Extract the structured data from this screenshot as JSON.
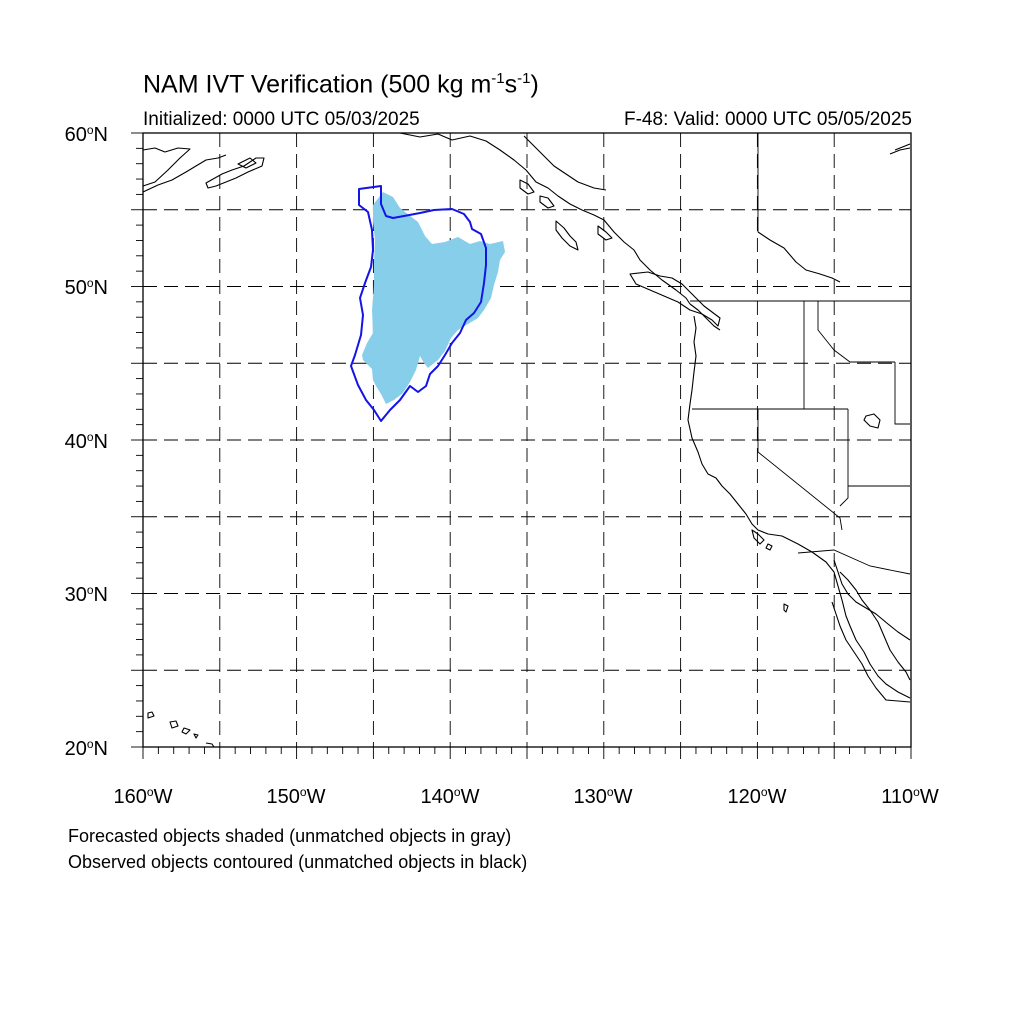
{
  "title": {
    "main": "NAM IVT Verification (500 kg m",
    "exp1": "-1",
    "mid": "s",
    "exp2": "-1",
    "close": ")"
  },
  "subtitle_left": "Initialized: 0000 UTC 05/03/2025",
  "subtitle_right": "F-48: Valid: 0000 UTC 05/05/2025",
  "map": {
    "lon_range": [
      -160,
      -110
    ],
    "lat_range": [
      20,
      60
    ],
    "grid_spacing_deg": 5,
    "grid_style": "dashed",
    "lat_labels": [
      {
        "num": "60",
        "hemi": "N"
      },
      {
        "num": "50",
        "hemi": "N"
      },
      {
        "num": "40",
        "hemi": "N"
      },
      {
        "num": "30",
        "hemi": "N"
      },
      {
        "num": "20",
        "hemi": "N"
      }
    ],
    "lon_labels": [
      {
        "num": "160",
        "hemi": "W"
      },
      {
        "num": "150",
        "hemi": "W"
      },
      {
        "num": "140",
        "hemi": "W"
      },
      {
        "num": "130",
        "hemi": "W"
      },
      {
        "num": "120",
        "hemi": "W"
      },
      {
        "num": "110",
        "hemi": "W"
      }
    ],
    "forecast_object_color": "#87ceeb",
    "observed_object_color": "#1414e6",
    "coastline_color": "#000000"
  },
  "footnotes": [
    "Forecasted objects shaded (unmatched objects in gray)",
    "Observed objects contoured (unmatched objects in black)"
  ]
}
